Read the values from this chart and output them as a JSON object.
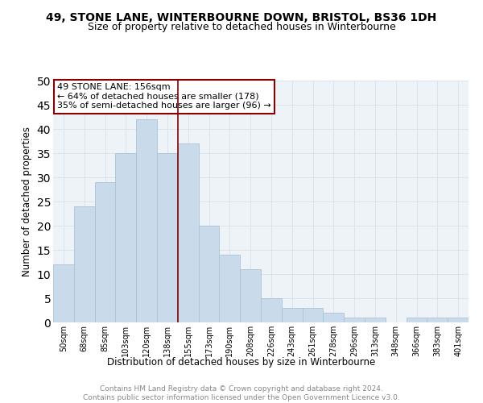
{
  "title": "49, STONE LANE, WINTERBOURNE DOWN, BRISTOL, BS36 1DH",
  "subtitle": "Size of property relative to detached houses in Winterbourne",
  "xlabel": "Distribution of detached houses by size in Winterbourne",
  "ylabel": "Number of detached properties",
  "footnote": "Contains HM Land Registry data © Crown copyright and database right 2024.\nContains public sector information licensed under the Open Government Licence v3.0.",
  "bins": [
    "50sqm",
    "68sqm",
    "85sqm",
    "103sqm",
    "120sqm",
    "138sqm",
    "155sqm",
    "173sqm",
    "190sqm",
    "208sqm",
    "226sqm",
    "243sqm",
    "261sqm",
    "278sqm",
    "296sqm",
    "313sqm",
    "348sqm",
    "366sqm",
    "383sqm",
    "401sqm"
  ],
  "values": [
    12,
    24,
    29,
    35,
    42,
    35,
    37,
    20,
    14,
    11,
    5,
    3,
    3,
    2,
    1,
    1,
    0,
    1,
    1,
    1
  ],
  "property_bin_index": 5.5,
  "annotation_line1": "49 STONE LANE: 156sqm",
  "annotation_line2": "← 64% of detached houses are smaller (178)",
  "annotation_line3": "35% of semi-detached houses are larger (96) →",
  "bar_color": "#c9daea",
  "bar_edge_color": "#a8c4d8",
  "marker_color": "#880000",
  "annotation_box_edge": "#880000",
  "grid_color": "#d8e4f0",
  "background_color": "#eef3f8",
  "ylim": [
    0,
    50
  ],
  "yticks": [
    0,
    5,
    10,
    15,
    20,
    25,
    30,
    35,
    40,
    45,
    50
  ],
  "title_fontsize": 10,
  "subtitle_fontsize": 9,
  "axis_label_fontsize": 8.5,
  "tick_fontsize": 7,
  "annotation_fontsize": 8,
  "footnote_fontsize": 6.5
}
